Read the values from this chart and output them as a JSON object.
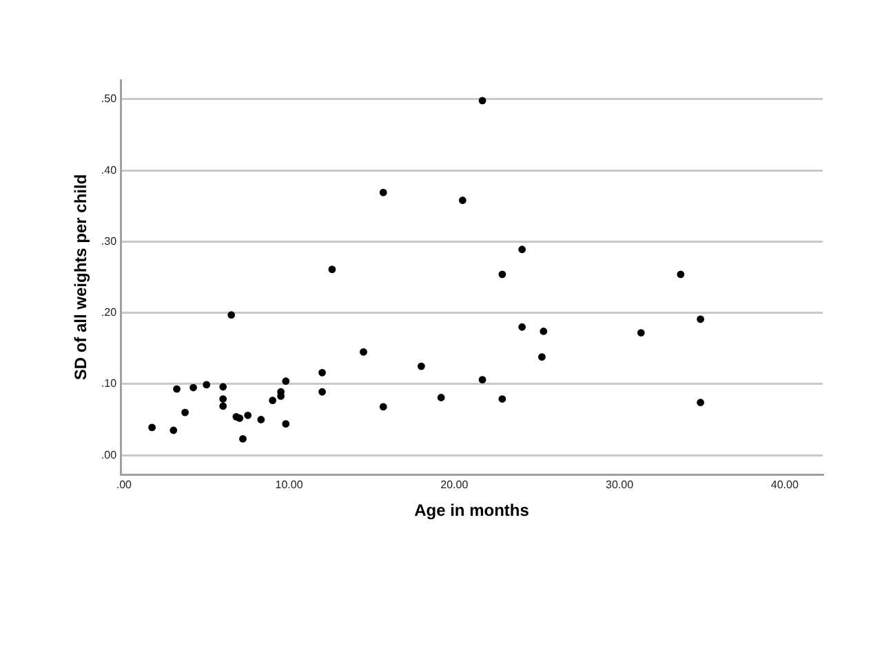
{
  "chart_data": {
    "type": "scatter",
    "xlabel": "Age in months",
    "ylabel": "SD of all weights per child",
    "color": "#000000",
    "marker": "circle",
    "grid": "y",
    "legend": false,
    "x": [
      1.7,
      3.0,
      3.2,
      3.7,
      4.2,
      5.0,
      6.0,
      6.0,
      6.0,
      6.5,
      6.8,
      7.0,
      7.2,
      7.5,
      8.3,
      9.0,
      9.5,
      9.5,
      9.8,
      9.8,
      12.0,
      12.0,
      12.6,
      14.5,
      15.7,
      15.7,
      18.0,
      19.2,
      21.7,
      20.5,
      24.1,
      22.9,
      33.7,
      24.1,
      25.4,
      31.3,
      34.9,
      25.3,
      21.7,
      22.9,
      34.9
    ],
    "values": [
      0.039,
      0.035,
      0.093,
      0.06,
      0.095,
      0.099,
      0.096,
      0.079,
      0.069,
      0.197,
      0.054,
      0.052,
      0.023,
      0.056,
      0.05,
      0.077,
      0.089,
      0.083,
      0.104,
      0.044,
      0.116,
      0.089,
      0.261,
      0.145,
      0.369,
      0.068,
      0.125,
      0.081,
      0.498,
      0.358,
      0.289,
      0.254,
      0.254,
      0.18,
      0.174,
      0.172,
      0.191,
      0.138,
      0.106,
      0.079,
      0.074
    ],
    "xlim": [
      -0.2,
      42.3
    ],
    "ylim": [
      -0.027,
      0.527
    ],
    "xticks": [
      {
        "value": 0,
        "label": ".00"
      },
      {
        "value": 10,
        "label": "10.00"
      },
      {
        "value": 20,
        "label": "20.00"
      },
      {
        "value": 30,
        "label": "30.00"
      },
      {
        "value": 40,
        "label": "40.00"
      }
    ],
    "yticks": [
      {
        "value": 0,
        "label": ".00"
      },
      {
        "value": 0.1,
        "label": ".10"
      },
      {
        "value": 0.2,
        "label": ".20"
      },
      {
        "value": 0.3,
        "label": ".30"
      },
      {
        "value": 0.4,
        "label": ".40"
      },
      {
        "value": 0.5,
        "label": ".50"
      }
    ]
  }
}
